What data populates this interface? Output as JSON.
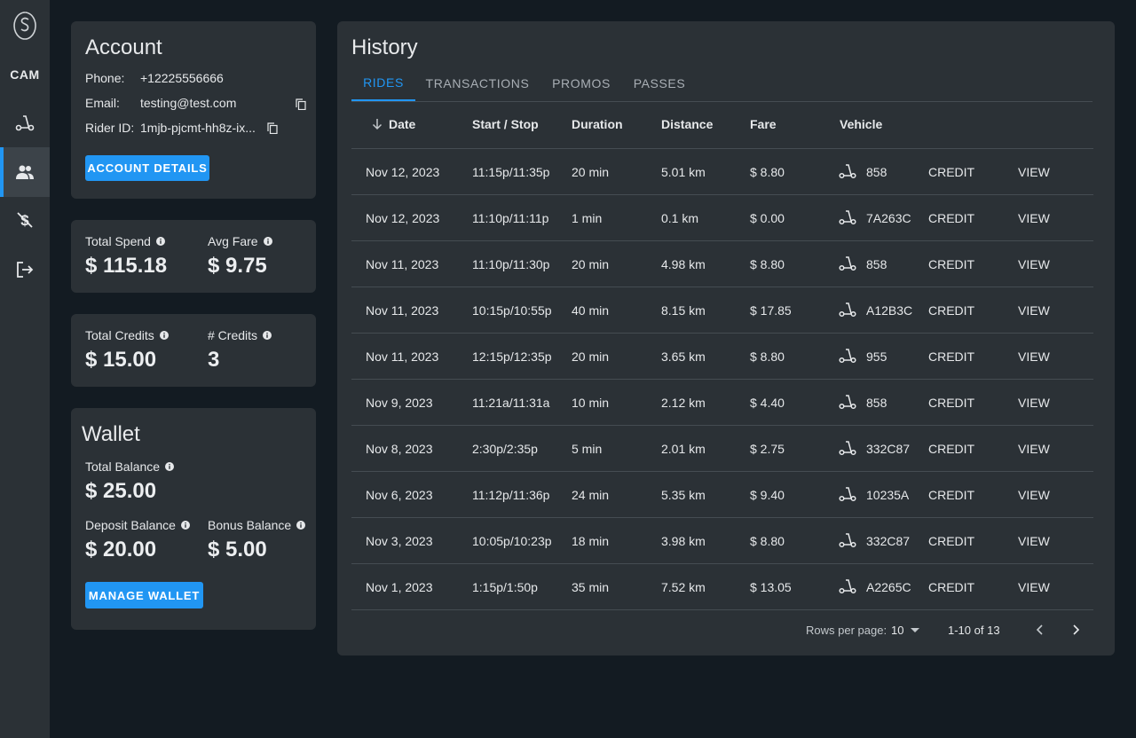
{
  "sidebar": {
    "logo": "S",
    "city": "CAM",
    "items": [
      {
        "name": "scooter-icon"
      },
      {
        "name": "users-icon",
        "active": true
      },
      {
        "name": "no-money-icon"
      },
      {
        "name": "logout-icon"
      }
    ]
  },
  "account": {
    "title": "Account",
    "phone_label": "Phone:",
    "phone": "+12225556666",
    "email_label": "Email:",
    "email": "testing@test.com",
    "rider_label": "Rider ID:",
    "rider_id": "1mjb-pjcmt-hh8z-ix...",
    "details_button": "ACCOUNT DETAILS"
  },
  "spend": {
    "total_label": "Total Spend",
    "total_value": "$ 115.18",
    "avg_label": "Avg Fare",
    "avg_value": "$ 9.75"
  },
  "credits": {
    "total_label": "Total Credits",
    "total_value": "$ 15.00",
    "count_label": "# Credits",
    "count_value": "3"
  },
  "wallet": {
    "title": "Wallet",
    "total_label": "Total Balance",
    "total_value": "$ 25.00",
    "deposit_label": "Deposit Balance",
    "deposit_value": "$ 20.00",
    "bonus_label": "Bonus Balance",
    "bonus_value": "$ 5.00",
    "manage_button": "MANAGE WALLET"
  },
  "history": {
    "title": "History",
    "tabs": [
      "RIDES",
      "TRANSACTIONS",
      "PROMOS",
      "PASSES"
    ],
    "columns": [
      "Date",
      "Start / Stop",
      "Duration",
      "Distance",
      "Fare",
      "Vehicle"
    ],
    "rows": [
      {
        "date": "Nov 12, 2023",
        "time": "11:15p/11:35p",
        "duration": "20 min",
        "distance": "5.01 km",
        "fare": "$ 8.80",
        "vehicle": "858",
        "method": "CREDIT",
        "action": "VIEW"
      },
      {
        "date": "Nov 12, 2023",
        "time": "11:10p/11:11p",
        "duration": "1 min",
        "distance": "0.1 km",
        "fare": "$ 0.00",
        "vehicle": "7A263C",
        "method": "CREDIT",
        "action": "VIEW"
      },
      {
        "date": "Nov 11, 2023",
        "time": "11:10p/11:30p",
        "duration": "20 min",
        "distance": "4.98 km",
        "fare": "$ 8.80",
        "vehicle": "858",
        "method": "CREDIT",
        "action": "VIEW"
      },
      {
        "date": "Nov 11, 2023",
        "time": "10:15p/10:55p",
        "duration": "40 min",
        "distance": "8.15 km",
        "fare": "$ 17.85",
        "vehicle": "A12B3C",
        "method": "CREDIT",
        "action": "VIEW"
      },
      {
        "date": "Nov 11, 2023",
        "time": "12:15p/12:35p",
        "duration": "20 min",
        "distance": "3.65 km",
        "fare": "$ 8.80",
        "vehicle": "955",
        "method": "CREDIT",
        "action": "VIEW"
      },
      {
        "date": "Nov 9, 2023",
        "time": "11:21a/11:31a",
        "duration": "10 min",
        "distance": "2.12 km",
        "fare": "$ 4.40",
        "vehicle": "858",
        "method": "CREDIT",
        "action": "VIEW"
      },
      {
        "date": "Nov 8, 2023",
        "time": "2:30p/2:35p",
        "duration": "5 min",
        "distance": "2.01 km",
        "fare": "$ 2.75",
        "vehicle": "332C87",
        "method": "CREDIT",
        "action": "VIEW"
      },
      {
        "date": "Nov 6, 2023",
        "time": "11:12p/11:36p",
        "duration": "24 min",
        "distance": "5.35 km",
        "fare": "$ 9.40",
        "vehicle": "10235A",
        "method": "CREDIT",
        "action": "VIEW"
      },
      {
        "date": "Nov 3, 2023",
        "time": "10:05p/10:23p",
        "duration": "18 min",
        "distance": "3.98 km",
        "fare": "$ 8.80",
        "vehicle": "332C87",
        "method": "CREDIT",
        "action": "VIEW"
      },
      {
        "date": "Nov 1, 2023",
        "time": "1:15p/1:50p",
        "duration": "35 min",
        "distance": "7.52 km",
        "fare": "$ 13.05",
        "vehicle": "A2265C",
        "method": "CREDIT",
        "action": "VIEW"
      }
    ],
    "pagination": {
      "rows_per_page_label": "Rows per page:",
      "rows_per_page": "10",
      "range": "1-10 of 13"
    }
  },
  "colors": {
    "accent": "#2196f3",
    "background": "#131b22",
    "card": "#2b3136"
  }
}
